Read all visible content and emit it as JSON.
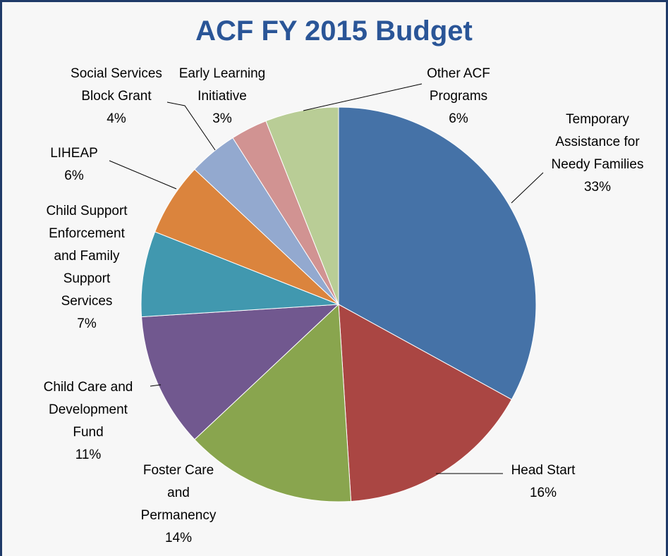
{
  "chart_data": {
    "type": "pie",
    "title": "ACF FY 2015 Budget",
    "categories": [
      "Temporary Assistance for Needy Families",
      "Head Start",
      "Foster Care and Permanency",
      "Child Care and Development Fund",
      "Child Support Enforcement and Family Support Services",
      "LIHEAP",
      "Social Services Block Grant",
      "Early Learning Initiative",
      "Other ACF Programs"
    ],
    "values": [
      33,
      16,
      14,
      11,
      7,
      6,
      4,
      3,
      6
    ],
    "value_labels": [
      "33%",
      "16%",
      "14%",
      "11%",
      "7%",
      "6%",
      "4%",
      "3%",
      "6%"
    ],
    "colors": [
      "#4572a7",
      "#aa4643",
      "#89a54e",
      "#71588f",
      "#4198af",
      "#db843d",
      "#93a9cf",
      "#d19392",
      "#b9cd96"
    ]
  }
}
